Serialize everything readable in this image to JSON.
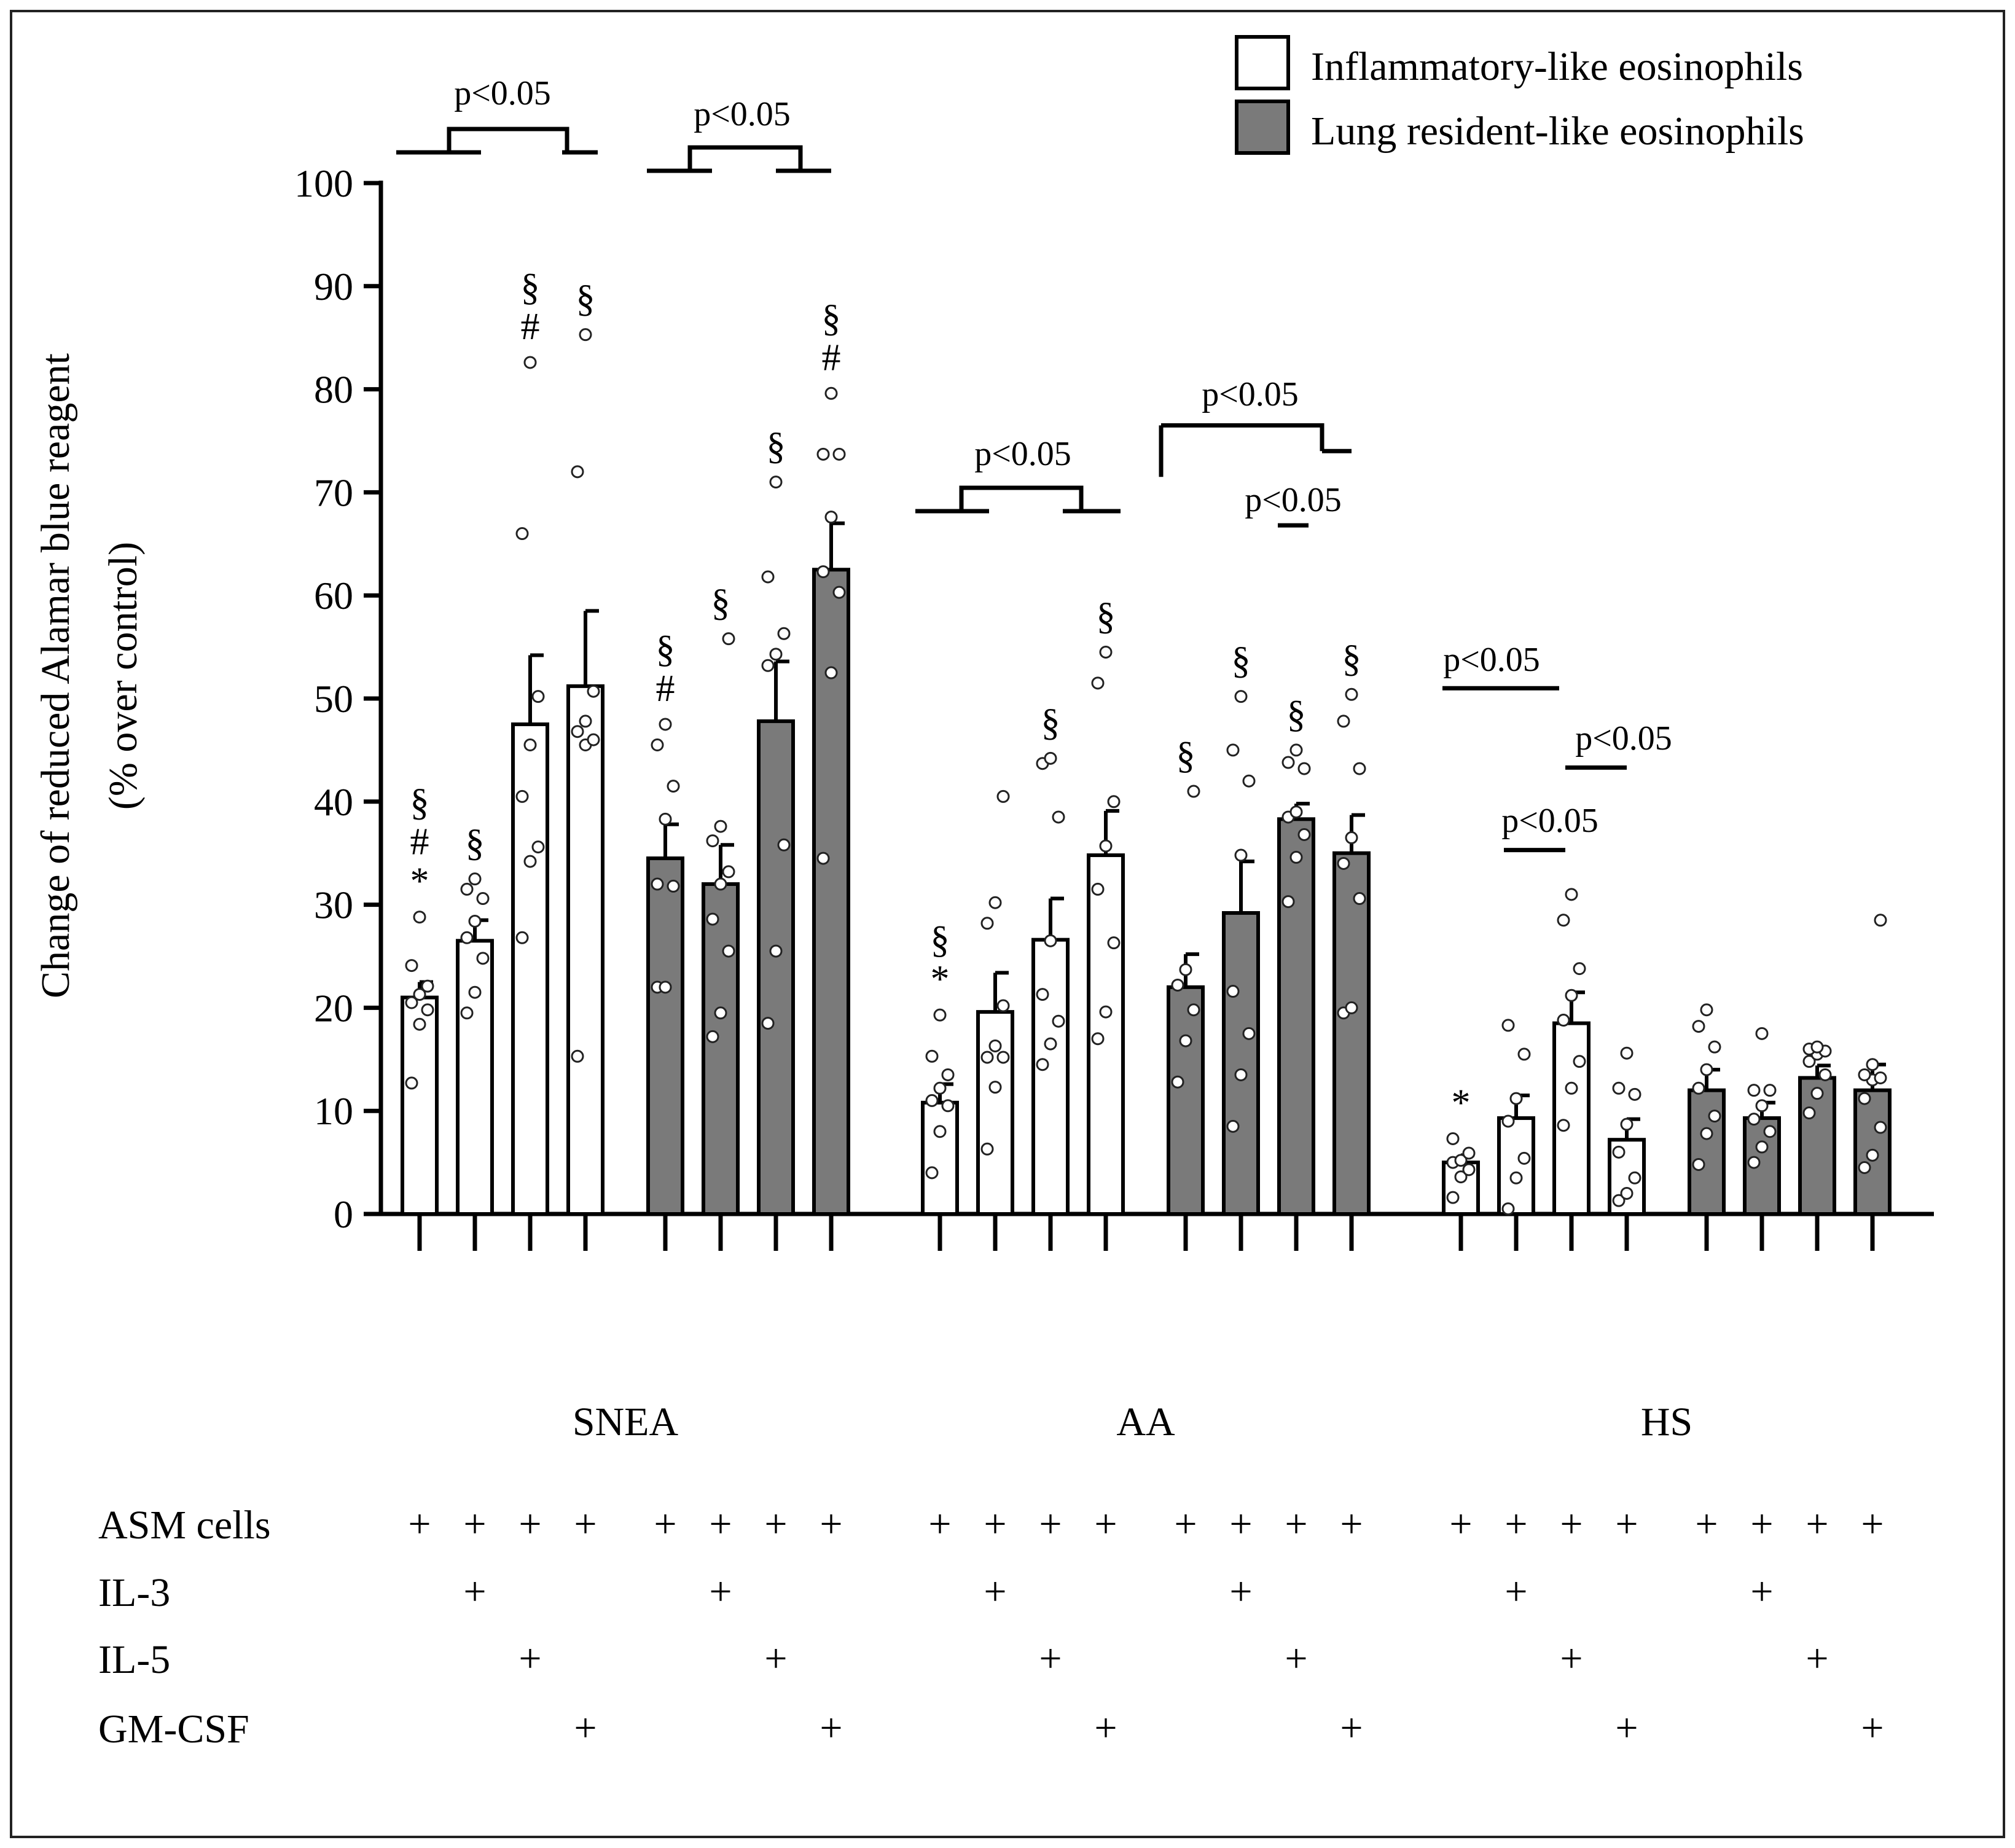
{
  "chart_data": {
    "type": "bar",
    "ylabel": "Change of reduced Alamar blue reagent",
    "ylabel2": "(% over control)",
    "ylim": [
      0,
      100
    ],
    "yticks": [
      0,
      10,
      20,
      30,
      40,
      50,
      60,
      70,
      80,
      90,
      100
    ],
    "legend": {
      "position": "top-right",
      "entries": [
        {
          "name": "Inflammatory-like eosinophils",
          "color": "#ffffff"
        },
        {
          "name": "Lung resident-like eosinophils",
          "color": "#7a7a7a"
        }
      ]
    },
    "series_colors": {
      "inflammatory": "#ffffff",
      "resident": "#7a7a7a"
    },
    "groups": [
      {
        "name": "SNEA",
        "bars": [
          {
            "series": "inflammatory",
            "value": 21,
            "sem": 1.5,
            "marks": [
              "§",
              "#",
              "*"
            ],
            "points": [
              12.7,
              18.4,
              19.8,
              20.5,
              21.3,
              22.1,
              24.1,
              28.8
            ]
          },
          {
            "series": "inflammatory",
            "value": 26.5,
            "sem": 2.0,
            "marks": [
              "§"
            ],
            "points": [
              19.5,
              21.5,
              24.8,
              26.8,
              28.4,
              30.6,
              31.5,
              32.5
            ]
          },
          {
            "series": "inflammatory",
            "value": 47.5,
            "sem": 6.7,
            "marks": [
              "§",
              "#"
            ],
            "points": [
              26.8,
              34.2,
              35.6,
              40.5,
              45.5,
              50.2,
              66.0,
              82.6
            ]
          },
          {
            "series": "inflammatory",
            "value": 51.2,
            "sem": 7.3,
            "marks": [
              "§"
            ],
            "points": [
              15.3,
              45.5,
              46.0,
              46.8,
              47.8,
              50.7,
              72.0,
              85.3
            ]
          },
          {
            "series": "resident",
            "value": 34.5,
            "sem": 3.3,
            "marks": [
              "§",
              "#"
            ],
            "points": [
              22.0,
              22.0,
              31.8,
              32.0,
              38.3,
              41.5,
              45.5,
              47.5
            ]
          },
          {
            "series": "resident",
            "value": 32.0,
            "sem": 3.8,
            "marks": [
              "§"
            ],
            "points": [
              17.2,
              19.5,
              25.5,
              28.6,
              32.0,
              33.2,
              36.2,
              37.6,
              55.8
            ]
          },
          {
            "series": "resident",
            "value": 47.8,
            "sem": 5.8,
            "marks": [
              "§"
            ],
            "points": [
              18.5,
              25.5,
              35.8,
              53.2,
              54.3,
              56.3,
              61.8,
              71.0
            ]
          },
          {
            "series": "resident",
            "value": 62.5,
            "sem": 4.5,
            "marks": [
              "§",
              "#"
            ],
            "points": [
              34.5,
              52.5,
              60.3,
              62.3,
              67.6,
              73.7,
              73.7,
              79.6
            ]
          }
        ]
      },
      {
        "name": "AA",
        "bars": [
          {
            "series": "inflammatory",
            "value": 10.8,
            "sem": 1.8,
            "marks": [
              "§",
              "*"
            ],
            "points": [
              4.0,
              8.0,
              10.5,
              11.0,
              12.2,
              13.5,
              15.3,
              19.3
            ]
          },
          {
            "series": "inflammatory",
            "value": 19.6,
            "sem": 3.8,
            "marks": [],
            "points": [
              6.3,
              12.3,
              15.2,
              15.2,
              16.3,
              20.2,
              28.2,
              30.2,
              40.5
            ]
          },
          {
            "series": "inflammatory",
            "value": 26.6,
            "sem": 4.0,
            "marks": [
              "§"
            ],
            "points": [
              14.5,
              16.5,
              18.7,
              21.3,
              26.5,
              38.5,
              43.7,
              44.2
            ]
          },
          {
            "series": "inflammatory",
            "value": 34.8,
            "sem": 4.3,
            "marks": [
              "§"
            ],
            "points": [
              17.0,
              19.6,
              26.3,
              31.5,
              35.7,
              40.0,
              51.5,
              54.5
            ]
          },
          {
            "series": "resident",
            "value": 22.0,
            "sem": 3.2,
            "marks": [
              "§"
            ],
            "points": [
              12.8,
              16.8,
              19.8,
              22.2,
              23.7,
              41.0
            ]
          },
          {
            "series": "resident",
            "value": 29.2,
            "sem": 5.0,
            "marks": [
              "§"
            ],
            "points": [
              8.5,
              13.5,
              17.5,
              21.6,
              34.8,
              42.0,
              45.0,
              50.2
            ]
          },
          {
            "series": "resident",
            "value": 38.3,
            "sem": 1.5,
            "marks": [
              "§"
            ],
            "points": [
              30.3,
              34.6,
              36.8,
              38.5,
              39.0,
              43.2,
              43.8,
              45.0
            ]
          },
          {
            "series": "resident",
            "value": 35.0,
            "sem": 3.7,
            "marks": [
              "§"
            ],
            "points": [
              19.5,
              20.0,
              30.6,
              34.0,
              36.5,
              43.2,
              47.8,
              50.4
            ]
          }
        ]
      },
      {
        "name": "HS",
        "bars": [
          {
            "series": "inflammatory",
            "value": 5.0,
            "sem": 0.7,
            "marks": [
              "*"
            ],
            "points": [
              1.6,
              3.6,
              4.3,
              5.0,
              5.2,
              5.9,
              7.3
            ]
          },
          {
            "series": "inflammatory",
            "value": 9.3,
            "sem": 2.2,
            "marks": [],
            "points": [
              0.5,
              3.5,
              5.4,
              9.0,
              11.2,
              15.5,
              18.3
            ]
          },
          {
            "series": "inflammatory",
            "value": 18.5,
            "sem": 3.0,
            "marks": [],
            "points": [
              8.6,
              12.2,
              14.8,
              18.8,
              21.2,
              23.8,
              28.5,
              31.0
            ]
          },
          {
            "series": "inflammatory",
            "value": 7.2,
            "sem": 2.0,
            "marks": [],
            "points": [
              1.3,
              2.0,
              3.5,
              6.0,
              8.7,
              11.6,
              12.2,
              15.6
            ]
          },
          {
            "series": "resident",
            "value": 12.0,
            "sem": 2.0,
            "marks": [],
            "points": [
              4.8,
              7.8,
              9.5,
              12.2,
              14.0,
              16.2,
              18.2,
              19.8
            ]
          },
          {
            "series": "resident",
            "value": 9.3,
            "sem": 1.5,
            "marks": [],
            "points": [
              5.0,
              6.5,
              8.0,
              9.2,
              10.5,
              12.0,
              12.0,
              17.5
            ]
          },
          {
            "series": "resident",
            "value": 13.2,
            "sem": 1.2,
            "marks": [],
            "points": [
              9.8,
              11.7,
              13.5,
              14.8,
              15.5,
              15.8,
              16.0,
              16.2
            ]
          },
          {
            "series": "resident",
            "value": 12.0,
            "sem": 2.5,
            "marks": [],
            "points": [
              4.5,
              5.7,
              8.4,
              11.2,
              13.0,
              13.2,
              13.5,
              14.5,
              28.5
            ]
          }
        ]
      }
    ],
    "comparisons": [
      {
        "label": "p<0.05",
        "from": 2,
        "to": 3
      },
      {
        "label": "p<0.05",
        "from": 6,
        "to": 7
      },
      {
        "label": "p<0.05",
        "from": 10,
        "to": 11
      },
      {
        "label": "p<0.05",
        "from": 14,
        "to": 15
      },
      {
        "label": "p<0.05",
        "from": 14,
        "to": 15
      },
      {
        "label": "p<0.05",
        "from": 16,
        "to": 18
      },
      {
        "label": "p<0.05",
        "from": 17,
        "to": 18
      },
      {
        "label": "p<0.05",
        "from": 18,
        "to": 19
      }
    ],
    "conditions": [
      {
        "label": "ASM cells",
        "flags": [
          1,
          1,
          1,
          1,
          1,
          1,
          1,
          1,
          1,
          1,
          1,
          1,
          1,
          1,
          1,
          1,
          1,
          1,
          1,
          1,
          1,
          1,
          1,
          1
        ]
      },
      {
        "label": "IL-3",
        "flags": [
          0,
          1,
          0,
          0,
          0,
          1,
          0,
          0,
          0,
          1,
          0,
          0,
          0,
          1,
          0,
          0,
          0,
          1,
          0,
          0,
          0,
          1,
          0,
          0
        ]
      },
      {
        "label": "IL-5",
        "flags": [
          0,
          0,
          1,
          0,
          0,
          0,
          1,
          0,
          0,
          0,
          1,
          0,
          0,
          0,
          1,
          0,
          0,
          0,
          1,
          0,
          0,
          0,
          1,
          0
        ]
      },
      {
        "label": "GM-CSF",
        "flags": [
          0,
          0,
          0,
          1,
          0,
          0,
          0,
          1,
          0,
          0,
          0,
          1,
          0,
          0,
          0,
          1,
          0,
          0,
          0,
          1,
          0,
          0,
          0,
          1
        ]
      }
    ],
    "plus_symbol": "+"
  }
}
